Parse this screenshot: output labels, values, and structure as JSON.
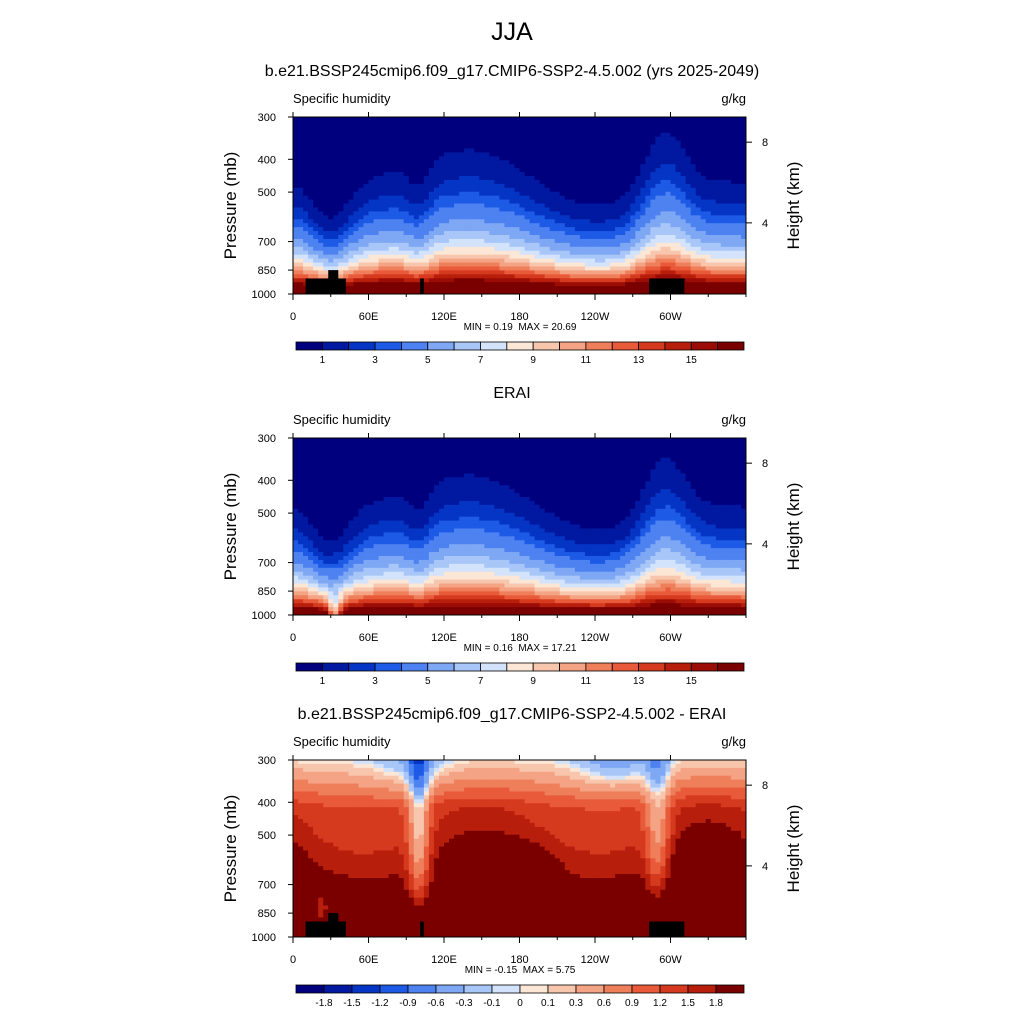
{
  "page": {
    "title": "JJA"
  },
  "chart_data": [
    {
      "type": "heatmap",
      "title": "b.e21.BSSP245cmip6.f09_g17.CMIP6-SSP2-4.5.002 (yrs 2025-2049)",
      "left_label": "Specific humidity",
      "right_label": "g/kg",
      "ylabel": "Pressure (mb)",
      "y2label": "Height (km)",
      "x_ticks": [
        "0",
        "60E",
        "120E",
        "180",
        "120W",
        "60W"
      ],
      "x_tick_values": [
        0,
        60,
        120,
        180,
        240,
        300
      ],
      "xlim": [
        0,
        360
      ],
      "y_ticks": [
        "300",
        "400",
        "500",
        "700",
        "850",
        "1000"
      ],
      "y_tick_values": [
        300,
        400,
        500,
        700,
        850,
        1000
      ],
      "ylim": [
        1000,
        300
      ],
      "y_scale": "log",
      "y2_ticks": [
        "8",
        "4"
      ],
      "y2_tick_values": [
        8,
        4
      ],
      "min_label": "MIN =   0.19",
      "max_label": "MAX =  20.69",
      "colorbar_labels": [
        "1",
        "3",
        "5",
        "7",
        "9",
        "11",
        "13",
        "15"
      ],
      "colorbar_levels": [
        0.5,
        1,
        1.5,
        2,
        3,
        4,
        5,
        6,
        7,
        8,
        9,
        10,
        11,
        12,
        13,
        14,
        15
      ],
      "colorbar_colors": [
        "#00007f",
        "#0019a0",
        "#0535c4",
        "#1d5ae6",
        "#4d82f0",
        "#7ea7f4",
        "#a8c6f7",
        "#d2e3fb",
        "#fce6d6",
        "#f8c6ad",
        "#f4a384",
        "#ef7f5b",
        "#e85a3a",
        "#d63a1e",
        "#b81e0c",
        "#9a0c05",
        "#7a0000"
      ]
    },
    {
      "type": "heatmap",
      "title": "ERAI",
      "left_label": "Specific humidity",
      "right_label": "g/kg",
      "ylabel": "Pressure (mb)",
      "y2label": "Height (km)",
      "x_ticks": [
        "0",
        "60E",
        "120E",
        "180",
        "120W",
        "60W"
      ],
      "x_tick_values": [
        0,
        60,
        120,
        180,
        240,
        300
      ],
      "xlim": [
        0,
        360
      ],
      "y_ticks": [
        "300",
        "400",
        "500",
        "700",
        "850",
        "1000"
      ],
      "y_tick_values": [
        300,
        400,
        500,
        700,
        850,
        1000
      ],
      "ylim": [
        1000,
        300
      ],
      "y_scale": "log",
      "y2_ticks": [
        "8",
        "4"
      ],
      "y2_tick_values": [
        8,
        4
      ],
      "min_label": "MIN =   0.16",
      "max_label": "MAX =  17.21",
      "colorbar_labels": [
        "1",
        "3",
        "5",
        "7",
        "9",
        "11",
        "13",
        "15"
      ],
      "colorbar_levels": [
        0.5,
        1,
        1.5,
        2,
        3,
        4,
        5,
        6,
        7,
        8,
        9,
        10,
        11,
        12,
        13,
        14,
        15
      ],
      "colorbar_colors": [
        "#00007f",
        "#0019a0",
        "#0535c4",
        "#1d5ae6",
        "#4d82f0",
        "#7ea7f4",
        "#a8c6f7",
        "#d2e3fb",
        "#fce6d6",
        "#f8c6ad",
        "#f4a384",
        "#ef7f5b",
        "#e85a3a",
        "#d63a1e",
        "#b81e0c",
        "#9a0c05",
        "#7a0000"
      ]
    },
    {
      "type": "heatmap",
      "title": "b.e21.BSSP245cmip6.f09_g17.CMIP6-SSP2-4.5.002 - ERAI",
      "left_label": "Specific humidity",
      "right_label": "g/kg",
      "ylabel": "Pressure (mb)",
      "y2label": "Height (km)",
      "x_ticks": [
        "0",
        "60E",
        "120E",
        "180",
        "120W",
        "60W"
      ],
      "x_tick_values": [
        0,
        60,
        120,
        180,
        240,
        300
      ],
      "xlim": [
        0,
        360
      ],
      "y_ticks": [
        "300",
        "400",
        "500",
        "700",
        "850",
        "1000"
      ],
      "y_tick_values": [
        300,
        400,
        500,
        700,
        850,
        1000
      ],
      "ylim": [
        1000,
        300
      ],
      "y_scale": "log",
      "y2_ticks": [
        "8",
        "4"
      ],
      "y2_tick_values": [
        8,
        4
      ],
      "min_label": "MIN =  -0.15",
      "max_label": "MAX =   5.75",
      "colorbar_labels": [
        "-1.8",
        "-1.5",
        "-1.2",
        "-0.9",
        "-0.6",
        "-0.3",
        "-0.1",
        "0",
        "0.1",
        "0.3",
        "0.6",
        "0.9",
        "1.2",
        "1.5",
        "1.8"
      ],
      "colorbar_levels": [
        -1.8,
        -1.5,
        -1.2,
        -0.9,
        -0.6,
        -0.3,
        -0.1,
        0,
        0.1,
        0.3,
        0.6,
        0.9,
        1.2,
        1.5,
        1.8
      ],
      "colorbar_colors": [
        "#00007f",
        "#0019a0",
        "#0535c4",
        "#1d5ae6",
        "#4d82f0",
        "#7ea7f4",
        "#a8c6f7",
        "#d2e3fb",
        "#fce6d6",
        "#f8c6ad",
        "#f4a384",
        "#ef7f5b",
        "#e85a3a",
        "#d63a1e",
        "#b81e0c",
        "#7a0000"
      ]
    }
  ]
}
